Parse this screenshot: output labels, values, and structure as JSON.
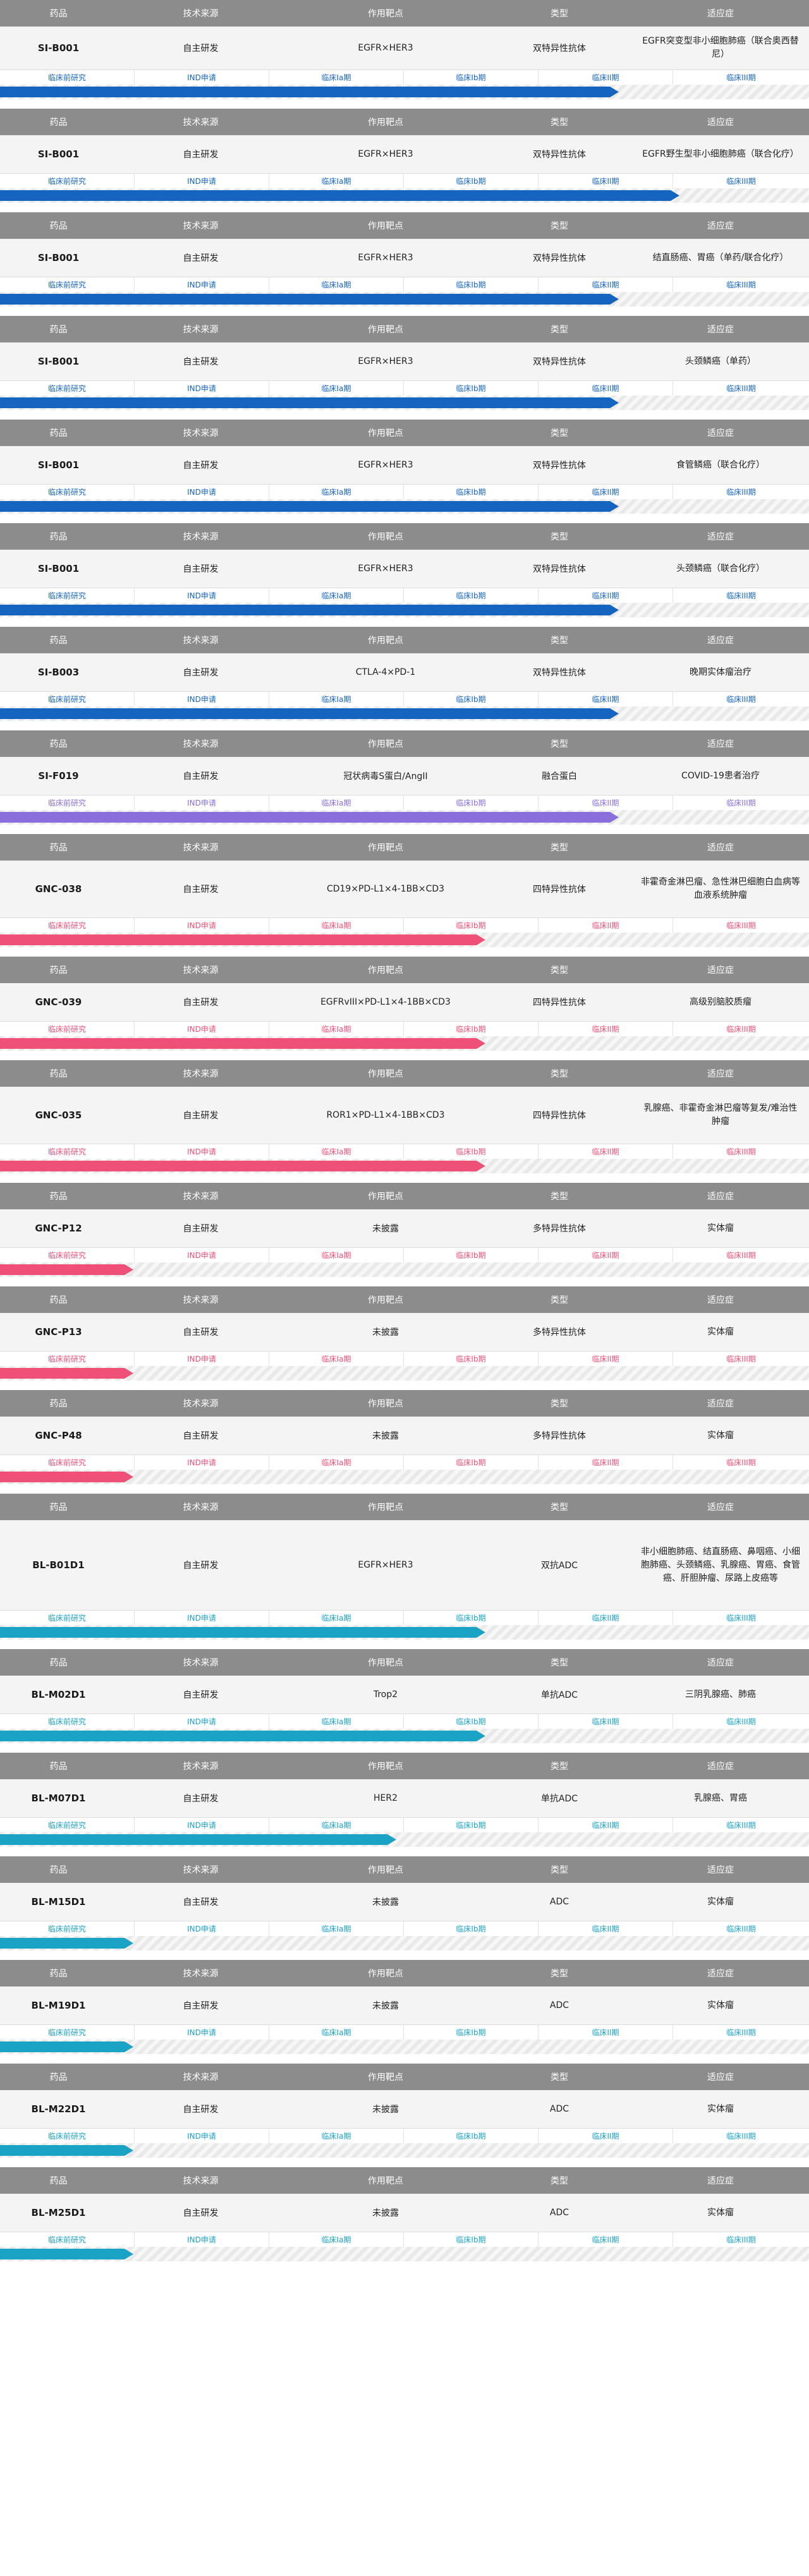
{
  "header": [
    "药品",
    "技术来源",
    "作用靶点",
    "类型",
    "适应症"
  ],
  "stages": [
    "临床前研究",
    "IND申请",
    "临床Ia期",
    "临床Ib期",
    "临床II期",
    "临床III期"
  ],
  "colors": {
    "header_bg": "#8c8c8c",
    "row_bg": "#f4f4f4",
    "blue": "#1565c0",
    "purple": "#8a6fdc",
    "pink": "#ef5077",
    "teal": "#1ba3c6"
  },
  "programs": [
    {
      "drug": "SI-B001",
      "source": "自主研发",
      "target": "EGFR×HER3",
      "type": "双特异性抗体",
      "indication": "EGFR突变型非小细胞肺癌（联合奥西替尼）",
      "color": "blue",
      "progress": 0.765
    },
    {
      "drug": "SI-B001",
      "source": "自主研发",
      "target": "EGFR×HER3",
      "type": "双特异性抗体",
      "indication": "EGFR野生型非小细胞肺癌（联合化疗）",
      "color": "blue",
      "progress": 0.84
    },
    {
      "drug": "SI-B001",
      "source": "自主研发",
      "target": "EGFR×HER3",
      "type": "双特异性抗体",
      "indication": "结直肠癌、胃癌（单药/联合化疗）",
      "color": "blue",
      "progress": 0.765
    },
    {
      "drug": "SI-B001",
      "source": "自主研发",
      "target": "EGFR×HER3",
      "type": "双特异性抗体",
      "indication": "头颈鳞癌（单药）",
      "color": "blue",
      "progress": 0.765
    },
    {
      "drug": "SI-B001",
      "source": "自主研发",
      "target": "EGFR×HER3",
      "type": "双特异性抗体",
      "indication": "食管鳞癌（联合化疗）",
      "color": "blue",
      "progress": 0.765
    },
    {
      "drug": "SI-B001",
      "source": "自主研发",
      "target": "EGFR×HER3",
      "type": "双特异性抗体",
      "indication": "头颈鳞癌（联合化疗）",
      "color": "blue",
      "progress": 0.765
    },
    {
      "drug": "SI-B003",
      "source": "自主研发",
      "target": "CTLA-4×PD-1",
      "type": "双特异性抗体",
      "indication": "晚期实体瘤治疗",
      "color": "blue",
      "progress": 0.765
    },
    {
      "drug": "SI-F019",
      "source": "自主研发",
      "target": "冠状病毒S蛋白/AngII",
      "type": "融合蛋白",
      "indication": "COVID-19患者治疗",
      "color": "purple",
      "progress": 0.765
    },
    {
      "drug": "GNC-038",
      "source": "自主研发",
      "target": "CD19×PD-L1×4-1BB×CD3",
      "type": "四特异性抗体",
      "indication": "非霍奇金淋巴瘤、急性淋巴细胞白血病等血液系统肿瘤",
      "color": "pink",
      "progress": 0.6
    },
    {
      "drug": "GNC-039",
      "source": "自主研发",
      "target": "EGFRvIII×PD-L1×4-1BB×CD3",
      "type": "四特异性抗体",
      "indication": "高级别脑胶质瘤",
      "color": "pink",
      "progress": 0.6
    },
    {
      "drug": "GNC-035",
      "source": "自主研发",
      "target": "ROR1×PD-L1×4-1BB×CD3",
      "type": "四特异性抗体",
      "indication": "乳腺癌、非霍奇金淋巴瘤等复发/难治性肿瘤",
      "color": "pink",
      "progress": 0.6
    },
    {
      "drug": "GNC-P12",
      "source": "自主研发",
      "target": "未披露",
      "type": "多特异性抗体",
      "indication": "实体瘤",
      "color": "pink",
      "progress": 0.165
    },
    {
      "drug": "GNC-P13",
      "source": "自主研发",
      "target": "未披露",
      "type": "多特异性抗体",
      "indication": "实体瘤",
      "color": "pink",
      "progress": 0.165
    },
    {
      "drug": "GNC-P48",
      "source": "自主研发",
      "target": "未披露",
      "type": "多特异性抗体",
      "indication": "实体瘤",
      "color": "pink",
      "progress": 0.165
    },
    {
      "drug": "BL-B01D1",
      "source": "自主研发",
      "target": "EGFR×HER3",
      "type": "双抗ADC",
      "indication": "非小细胞肺癌、结直肠癌、鼻咽癌、小细胞肺癌、头颈鳞癌、乳腺癌、胃癌、食管癌、肝胆肿瘤、尿路上皮癌等",
      "color": "teal",
      "progress": 0.6
    },
    {
      "drug": "BL-M02D1",
      "source": "自主研发",
      "target": "Trop2",
      "type": "单抗ADC",
      "indication": "三阴乳腺癌、肺癌",
      "color": "teal",
      "progress": 0.6
    },
    {
      "drug": "BL-M07D1",
      "source": "自主研发",
      "target": "HER2",
      "type": "单抗ADC",
      "indication": "乳腺癌、胃癌",
      "color": "teal",
      "progress": 0.49
    },
    {
      "drug": "BL-M15D1",
      "source": "自主研发",
      "target": "未披露",
      "type": "ADC",
      "indication": "实体瘤",
      "color": "teal",
      "progress": 0.165
    },
    {
      "drug": "BL-M19D1",
      "source": "自主研发",
      "target": "未披露",
      "type": "ADC",
      "indication": "实体瘤",
      "color": "teal",
      "progress": 0.165
    },
    {
      "drug": "BL-M22D1",
      "source": "自主研发",
      "target": "未披露",
      "type": "ADC",
      "indication": "实体瘤",
      "color": "teal",
      "progress": 0.165
    },
    {
      "drug": "BL-M25D1",
      "source": "自主研发",
      "target": "未披露",
      "type": "ADC",
      "indication": "实体瘤",
      "color": "teal",
      "progress": 0.165
    }
  ]
}
